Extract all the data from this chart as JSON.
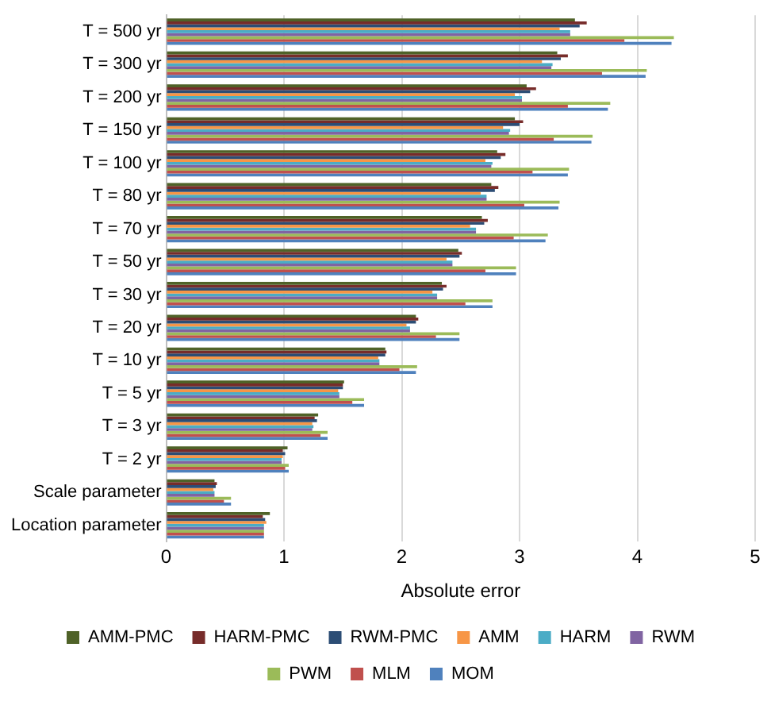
{
  "chart_data": {
    "type": "bar",
    "orientation": "horizontal",
    "xlabel": "Absolute error",
    "categories": [
      "T = 500 yr",
      "T = 300 yr",
      "T = 200 yr",
      "T = 150 yr",
      "T = 100 yr",
      "T = 80 yr",
      "T = 70 yr",
      "T = 50 yr",
      "T = 30 yr",
      "T = 20 yr",
      "T = 10 yr",
      "T = 5 yr",
      "T = 3 yr",
      "T = 2 yr",
      "Scale parameter",
      "Location parameter"
    ],
    "series": [
      {
        "name": "AMM-PMC",
        "color": "#4f6228",
        "values": [
          3.47,
          3.32,
          3.06,
          2.96,
          2.81,
          2.76,
          2.68,
          2.48,
          2.34,
          2.12,
          1.86,
          1.51,
          1.29,
          1.03,
          0.41,
          0.88
        ]
      },
      {
        "name": "HARM-PMC",
        "color": "#772c2a",
        "values": [
          3.57,
          3.41,
          3.14,
          3.03,
          2.88,
          2.82,
          2.73,
          2.51,
          2.38,
          2.14,
          1.87,
          1.5,
          1.26,
          0.99,
          0.43,
          0.82
        ]
      },
      {
        "name": "RWM-PMC",
        "color": "#2c4d75",
        "values": [
          3.51,
          3.35,
          3.09,
          3.0,
          2.84,
          2.79,
          2.7,
          2.49,
          2.35,
          2.12,
          1.86,
          1.5,
          1.28,
          1.01,
          0.42,
          0.84
        ]
      },
      {
        "name": "AMM",
        "color": "#f79646",
        "values": [
          3.34,
          3.19,
          2.96,
          2.86,
          2.71,
          2.67,
          2.58,
          2.38,
          2.26,
          2.04,
          1.8,
          1.46,
          1.24,
          0.99,
          0.4,
          0.85
        ]
      },
      {
        "name": "HARM",
        "color": "#4bacc6",
        "values": [
          3.43,
          3.28,
          3.02,
          2.92,
          2.77,
          2.72,
          2.63,
          2.43,
          2.3,
          2.07,
          1.81,
          1.47,
          1.25,
          0.98,
          0.41,
          0.83
        ]
      },
      {
        "name": "RWM",
        "color": "#8064a2",
        "values": [
          3.43,
          3.27,
          3.02,
          2.91,
          2.76,
          2.72,
          2.63,
          2.43,
          2.3,
          2.07,
          1.81,
          1.47,
          1.24,
          0.98,
          0.41,
          0.83
        ]
      },
      {
        "name": "PWM",
        "color": "#9bbb59",
        "values": [
          4.31,
          4.08,
          3.77,
          3.62,
          3.42,
          3.34,
          3.24,
          2.97,
          2.77,
          2.49,
          2.13,
          1.68,
          1.37,
          1.04,
          0.55,
          0.83
        ]
      },
      {
        "name": "MLM",
        "color": "#c0504d",
        "values": [
          3.89,
          3.7,
          3.41,
          3.29,
          3.11,
          3.04,
          2.95,
          2.71,
          2.54,
          2.29,
          1.98,
          1.58,
          1.31,
          1.01,
          0.49,
          0.83
        ]
      },
      {
        "name": "MOM",
        "color": "#4f81bd",
        "values": [
          4.29,
          4.07,
          3.75,
          3.61,
          3.41,
          3.33,
          3.22,
          2.97,
          2.77,
          2.49,
          2.12,
          1.68,
          1.37,
          1.04,
          0.55,
          0.83
        ]
      }
    ],
    "xlim": [
      0,
      5
    ],
    "xticks": [
      0,
      1,
      2,
      3,
      4,
      5
    ],
    "grid": "x",
    "legend": "bottom"
  }
}
